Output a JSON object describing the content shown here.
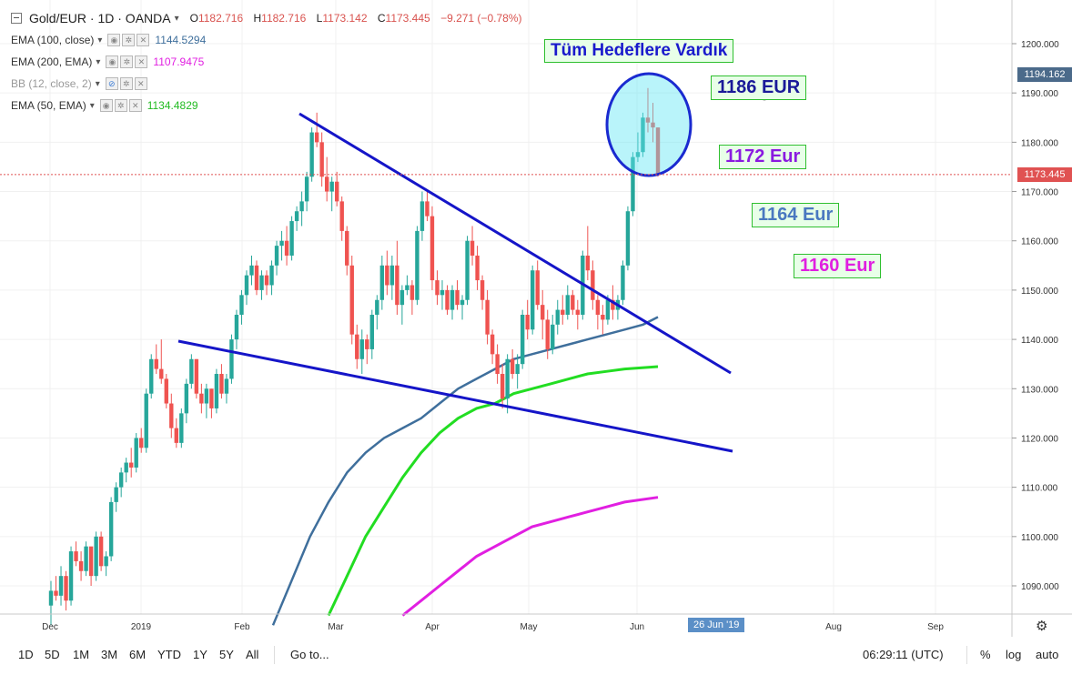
{
  "header": {
    "symbol": "Gold/EUR · 1D · OANDA",
    "open_label": "O",
    "open": "1182.716",
    "high_label": "H",
    "high": "1182.716",
    "low_label": "L",
    "low": "1173.142",
    "close_label": "C",
    "close": "1173.445",
    "change": "−9.271 (−0.78%)"
  },
  "indicators": [
    {
      "label": "EMA (100, close)",
      "value": "1144.5294",
      "color": "#3f6f9c"
    },
    {
      "label": "EMA (200, EMA)",
      "value": "1107.9475",
      "color": "#e11fe1"
    },
    {
      "label": "BB (12, close, 2)",
      "value": "",
      "color": "#888888"
    },
    {
      "label": "EMA (50, EMA)",
      "value": "1134.4829",
      "color": "#22cc22"
    }
  ],
  "annotations": {
    "title": "Tüm Hedeflere Vardık",
    "t1186": "1186 EUR",
    "t1172": "1172 Eur",
    "t1164": "1164 Eur",
    "t1160": "1160 Eur"
  },
  "price_tags": {
    "top": "1194.162",
    "last": "1173.445"
  },
  "date_badge": "26 Jun '19",
  "bottom": {
    "ranges": [
      "1D",
      "5D",
      "1M",
      "3M",
      "6M",
      "YTD",
      "1Y",
      "5Y",
      "All"
    ],
    "goto": "Go to...",
    "time": "06:29:11 (UTC)",
    "percent": "%",
    "log": "log",
    "auto": "auto"
  },
  "chart_data": {
    "type": "candlestick",
    "ylim": [
      1084,
      1205
    ],
    "y_ticks": [
      1090,
      1100,
      1110,
      1120,
      1130,
      1140,
      1150,
      1160,
      1170,
      1180,
      1190,
      1200
    ],
    "y_tick_labels": [
      "1090.000",
      "1100.000",
      "1110.000",
      "1120.000",
      "1130.000",
      "1140.000",
      "1150.000",
      "1160.000",
      "1170.000",
      "1180.000",
      "1190.000",
      "1200.000"
    ],
    "x_labels": [
      "Dec",
      "2019",
      "Feb",
      "Mar",
      "Apr",
      "May",
      "Jun",
      "Aug",
      "Sep"
    ],
    "last_price": 1173.445,
    "candles": [
      [
        1086,
        1091,
        1082,
        1089
      ],
      [
        1089,
        1092,
        1087,
        1088
      ],
      [
        1088,
        1094,
        1086,
        1092
      ],
      [
        1092,
        1093,
        1085,
        1087
      ],
      [
        1087,
        1098,
        1086,
        1097
      ],
      [
        1097,
        1099,
        1094,
        1095
      ],
      [
        1095,
        1097,
        1091,
        1093
      ],
      [
        1093,
        1099,
        1092,
        1098
      ],
      [
        1098,
        1097,
        1090,
        1092
      ],
      [
        1092,
        1101,
        1091,
        1100
      ],
      [
        1100,
        1101,
        1093,
        1094
      ],
      [
        1094,
        1097,
        1092,
        1096
      ],
      [
        1096,
        1108,
        1095,
        1107
      ],
      [
        1107,
        1111,
        1105,
        1110
      ],
      [
        1110,
        1114,
        1108,
        1113
      ],
      [
        1113,
        1116,
        1111,
        1115
      ],
      [
        1115,
        1118,
        1112,
        1114
      ],
      [
        1114,
        1121,
        1113,
        1120
      ],
      [
        1120,
        1122,
        1117,
        1118
      ],
      [
        1118,
        1130,
        1117,
        1129
      ],
      [
        1129,
        1137,
        1128,
        1136
      ],
      [
        1136,
        1139,
        1133,
        1134
      ],
      [
        1134,
        1140,
        1131,
        1132
      ],
      [
        1132,
        1133,
        1126,
        1127
      ],
      [
        1127,
        1129,
        1120,
        1122
      ],
      [
        1122,
        1124,
        1118,
        1119
      ],
      [
        1119,
        1126,
        1118,
        1125
      ],
      [
        1125,
        1132,
        1123,
        1131
      ],
      [
        1131,
        1137,
        1130,
        1136
      ],
      [
        1136,
        1136,
        1128,
        1129
      ],
      [
        1129,
        1131,
        1125,
        1127
      ],
      [
        1127,
        1131,
        1124,
        1130
      ],
      [
        1130,
        1130,
        1124,
        1126
      ],
      [
        1126,
        1134,
        1125,
        1133
      ],
      [
        1133,
        1135,
        1128,
        1129
      ],
      [
        1129,
        1133,
        1127,
        1132
      ],
      [
        1132,
        1141,
        1131,
        1140
      ],
      [
        1140,
        1146,
        1138,
        1145
      ],
      [
        1145,
        1150,
        1143,
        1149
      ],
      [
        1149,
        1154,
        1147,
        1153
      ],
      [
        1153,
        1157,
        1151,
        1155
      ],
      [
        1155,
        1156,
        1149,
        1150
      ],
      [
        1150,
        1154,
        1148,
        1153
      ],
      [
        1153,
        1154,
        1149,
        1151
      ],
      [
        1151,
        1156,
        1149,
        1155
      ],
      [
        1155,
        1160,
        1153,
        1159
      ],
      [
        1159,
        1162,
        1156,
        1160
      ],
      [
        1160,
        1163,
        1155,
        1157
      ],
      [
        1157,
        1165,
        1156,
        1164
      ],
      [
        1164,
        1167,
        1162,
        1166
      ],
      [
        1166,
        1170,
        1163,
        1168
      ],
      [
        1168,
        1174,
        1166,
        1173
      ],
      [
        1173,
        1183,
        1172,
        1182
      ],
      [
        1182,
        1186,
        1179,
        1180
      ],
      [
        1180,
        1182,
        1171,
        1173
      ],
      [
        1173,
        1177,
        1168,
        1170
      ],
      [
        1170,
        1173,
        1166,
        1172
      ],
      [
        1172,
        1174,
        1167,
        1168
      ],
      [
        1168,
        1169,
        1160,
        1162
      ],
      [
        1162,
        1163,
        1153,
        1155
      ],
      [
        1155,
        1157,
        1139,
        1141
      ],
      [
        1141,
        1143,
        1134,
        1136
      ],
      [
        1136,
        1142,
        1133,
        1140
      ],
      [
        1140,
        1141,
        1135,
        1138
      ],
      [
        1138,
        1146,
        1136,
        1145
      ],
      [
        1145,
        1149,
        1142,
        1148
      ],
      [
        1148,
        1157,
        1146,
        1155
      ],
      [
        1155,
        1158,
        1149,
        1151
      ],
      [
        1151,
        1157,
        1148,
        1155
      ],
      [
        1155,
        1160,
        1145,
        1147
      ],
      [
        1147,
        1151,
        1143,
        1150
      ],
      [
        1150,
        1153,
        1149,
        1151
      ],
      [
        1151,
        1152,
        1145,
        1148
      ],
      [
        1148,
        1163,
        1147,
        1162
      ],
      [
        1162,
        1170,
        1160,
        1168
      ],
      [
        1168,
        1170,
        1164,
        1165
      ],
      [
        1165,
        1167,
        1150,
        1152
      ],
      [
        1152,
        1154,
        1147,
        1149
      ],
      [
        1149,
        1152,
        1146,
        1150
      ],
      [
        1150,
        1151,
        1145,
        1146
      ],
      [
        1146,
        1151,
        1144,
        1150
      ],
      [
        1150,
        1152,
        1146,
        1147
      ],
      [
        1147,
        1149,
        1144,
        1148
      ],
      [
        1148,
        1161,
        1147,
        1160
      ],
      [
        1160,
        1163,
        1155,
        1157
      ],
      [
        1157,
        1159,
        1150,
        1152
      ],
      [
        1152,
        1153,
        1146,
        1148
      ],
      [
        1148,
        1150,
        1139,
        1141
      ],
      [
        1141,
        1142,
        1135,
        1137
      ],
      [
        1137,
        1139,
        1131,
        1133
      ],
      [
        1133,
        1135,
        1126,
        1128
      ],
      [
        1128,
        1137,
        1125,
        1136
      ],
      [
        1136,
        1138,
        1132,
        1133
      ],
      [
        1133,
        1137,
        1130,
        1135
      ],
      [
        1135,
        1146,
        1134,
        1145
      ],
      [
        1145,
        1148,
        1140,
        1142
      ],
      [
        1142,
        1155,
        1141,
        1154
      ],
      [
        1154,
        1156,
        1146,
        1147
      ],
      [
        1147,
        1150,
        1140,
        1144
      ],
      [
        1144,
        1146,
        1136,
        1138
      ],
      [
        1138,
        1145,
        1137,
        1143
      ],
      [
        1143,
        1148,
        1141,
        1146
      ],
      [
        1146,
        1149,
        1143,
        1145
      ],
      [
        1145,
        1151,
        1144,
        1149
      ],
      [
        1149,
        1150,
        1145,
        1146
      ],
      [
        1146,
        1148,
        1142,
        1145
      ],
      [
        1145,
        1158,
        1144,
        1157
      ],
      [
        1157,
        1163,
        1152,
        1154
      ],
      [
        1154,
        1156,
        1146,
        1148
      ],
      [
        1148,
        1149,
        1142,
        1145
      ],
      [
        1145,
        1147,
        1141,
        1144
      ],
      [
        1144,
        1149,
        1143,
        1148
      ],
      [
        1148,
        1151,
        1144,
        1146
      ],
      [
        1146,
        1149,
        1144,
        1148
      ],
      [
        1148,
        1156,
        1147,
        1155
      ],
      [
        1155,
        1167,
        1154,
        1166
      ],
      [
        1166,
        1178,
        1165,
        1177
      ],
      [
        1177,
        1182,
        1176,
        1178
      ],
      [
        1178,
        1186,
        1177,
        1185
      ],
      [
        1185,
        1191,
        1182,
        1184
      ],
      [
        1184,
        1188,
        1180,
        1183
      ],
      [
        1183,
        1183,
        1173,
        1173.4
      ]
    ],
    "ema100": [
      [
        1120,
        1082
      ],
      [
        1140,
        1100
      ],
      [
        1150,
        1107
      ],
      [
        1160,
        1113
      ],
      [
        1170,
        1117
      ],
      [
        1180,
        1120
      ],
      [
        1190,
        1122
      ],
      [
        1200,
        1124
      ],
      [
        1210,
        1127
      ],
      [
        1220,
        1130
      ],
      [
        1230,
        1132
      ],
      [
        1240,
        1134
      ],
      [
        1250,
        1136
      ],
      [
        1260,
        1137
      ],
      [
        1270,
        1138
      ],
      [
        1280,
        1139
      ],
      [
        1290,
        1140
      ],
      [
        1300,
        1141
      ],
      [
        1310,
        1142
      ],
      [
        1320,
        1143
      ],
      [
        1328,
        1144.53
      ]
    ],
    "ema50": [
      [
        1150,
        1084
      ],
      [
        1160,
        1092
      ],
      [
        1170,
        1100
      ],
      [
        1180,
        1106
      ],
      [
        1190,
        1112
      ],
      [
        1200,
        1117
      ],
      [
        1210,
        1121
      ],
      [
        1220,
        1124
      ],
      [
        1230,
        1126
      ],
      [
        1240,
        1127
      ],
      [
        1250,
        1129
      ],
      [
        1260,
        1130
      ],
      [
        1270,
        1131
      ],
      [
        1280,
        1132
      ],
      [
        1290,
        1133
      ],
      [
        1300,
        1133.5
      ],
      [
        1310,
        1134
      ],
      [
        1328,
        1134.48
      ]
    ],
    "ema200": [
      [
        1190,
        1084
      ],
      [
        1200,
        1087
      ],
      [
        1210,
        1090
      ],
      [
        1220,
        1093
      ],
      [
        1230,
        1096
      ],
      [
        1240,
        1098
      ],
      [
        1250,
        1100
      ],
      [
        1260,
        1102
      ],
      [
        1270,
        1103
      ],
      [
        1280,
        1104
      ],
      [
        1290,
        1105
      ],
      [
        1300,
        1106
      ],
      [
        1310,
        1107
      ],
      [
        1328,
        1107.95
      ]
    ],
    "trendlines": [
      {
        "from": [
          1150,
          1186
        ],
        "to": [
          1340,
          1133
        ]
      },
      {
        "from": [
          1110,
          1140
        ],
        "to": [
          1340,
          1117
        ]
      }
    ]
  }
}
